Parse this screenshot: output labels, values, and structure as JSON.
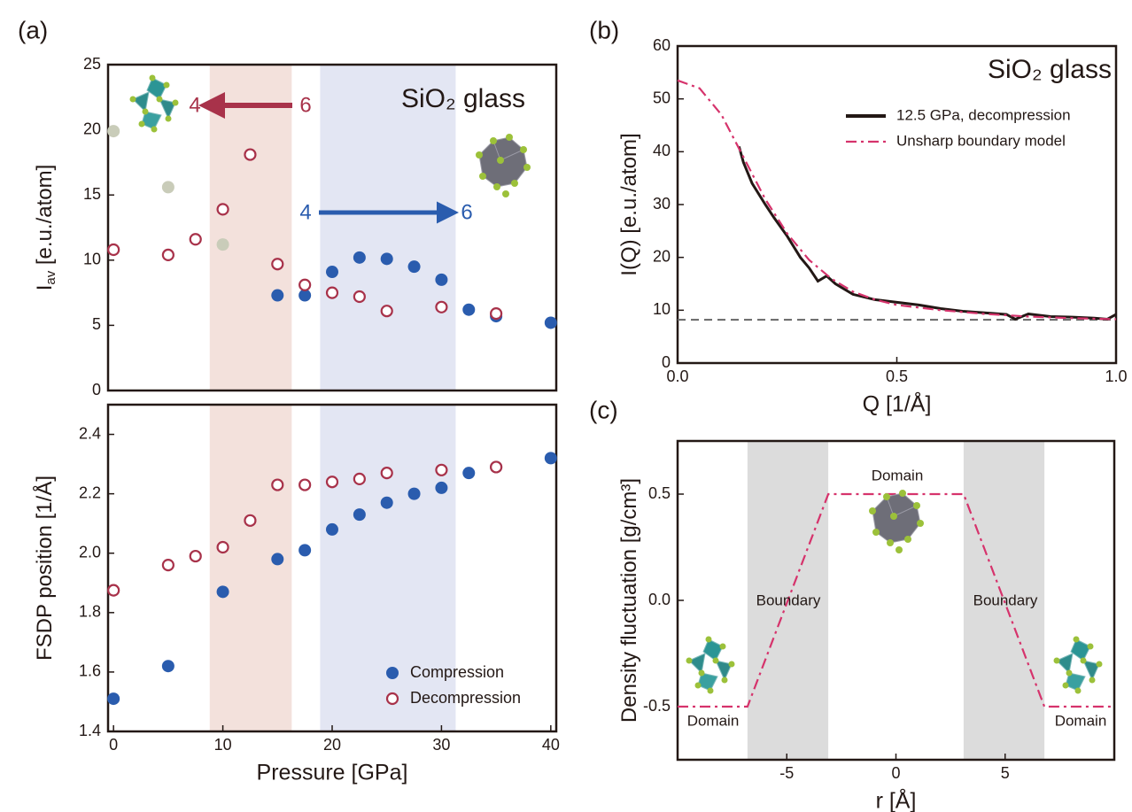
{
  "chart_data": [
    {
      "type": "scatter",
      "panel_label": "(a)",
      "title": "SiO₂ glass",
      "ylabel": "I",
      "ylabel_sub": "av",
      "ylabel_rest": " [e.u./atom]",
      "annotations": [
        "4",
        "6",
        "4",
        "6"
      ],
      "xlim": [
        -0.5,
        40.5
      ],
      "ylim": [
        0,
        25
      ],
      "yticks": [
        0,
        5,
        10,
        15,
        20,
        25
      ],
      "bands": [
        {
          "from": 8.8,
          "to": 16.3,
          "color": "#f3e1dc"
        },
        {
          "from": 18.9,
          "to": 31.3,
          "color": "#e3e6f3"
        }
      ],
      "series": [
        {
          "color": "#2a5cae",
          "marker": "filled",
          "x": [
            15,
            17.5,
            20,
            22.5,
            25,
            27.5,
            30,
            32.5,
            35,
            40
          ],
          "values": [
            7.3,
            7.3,
            9.1,
            10.2,
            10.1,
            9.5,
            8.5,
            6.2,
            5.7,
            5.2
          ]
        },
        {
          "color": "#c9ccb9",
          "marker": "filled",
          "x": [
            0,
            5,
            10
          ],
          "values": [
            19.9,
            15.6,
            11.2
          ]
        },
        {
          "color": "#a8324a",
          "marker": "open",
          "x": [
            0,
            5,
            7.5,
            10,
            12.5,
            15,
            17.5,
            20,
            22.5,
            25,
            30,
            35
          ],
          "values": [
            10.8,
            10.4,
            11.6,
            13.9,
            18.1,
            9.7,
            8.1,
            7.5,
            7.2,
            6.1,
            6.4,
            5.9
          ]
        }
      ]
    },
    {
      "type": "scatter",
      "xlabel": "Pressure [GPa]",
      "ylabel": "FSDP position [1/Å]",
      "xlim": [
        -0.5,
        40.5
      ],
      "xticks": [
        0,
        10,
        20,
        30,
        40
      ],
      "ylim": [
        1.4,
        2.5
      ],
      "yticks": [
        1.4,
        1.6,
        1.8,
        {
          "value": 2.0,
          "label": "2.0"
        },
        2.2,
        2.4
      ],
      "bands": [
        {
          "from": 8.8,
          "to": 16.3,
          "color": "#f3e1dc"
        },
        {
          "from": 18.9,
          "to": 31.3,
          "color": "#e3e6f3"
        }
      ],
      "legend": "lower right",
      "series": [
        {
          "name": "Compression",
          "color": "#2a5cae",
          "marker": "filled",
          "x": [
            0,
            5,
            10,
            15,
            17.5,
            20,
            22.5,
            25,
            27.5,
            30,
            32.5,
            35,
            40
          ],
          "values": [
            1.51,
            1.62,
            1.87,
            1.98,
            2.01,
            2.08,
            2.13,
            2.17,
            2.2,
            2.22,
            2.27,
            2.29,
            2.32
          ]
        },
        {
          "name": "Decompression",
          "color": "#a8324a",
          "marker": "open",
          "x": [
            0,
            5,
            7.5,
            10,
            12.5,
            15,
            17.5,
            20,
            22.5,
            25,
            30,
            35
          ],
          "values": [
            1.875,
            1.96,
            1.99,
            2.02,
            2.11,
            2.23,
            2.23,
            2.24,
            2.25,
            2.27,
            2.28,
            2.29
          ]
        }
      ]
    },
    {
      "type": "line",
      "panel_label": "(b)",
      "title": "SiO₂ glass",
      "xlabel": "Q [1/Å]",
      "ylabel": "I(Q) [e.u./atom]",
      "xlim": [
        0,
        1
      ],
      "xticks": [
        {
          "value": 0,
          "label": "0.0"
        },
        0.5,
        {
          "value": 1,
          "label": "1.0"
        }
      ],
      "ylim": [
        0,
        60
      ],
      "yticks": [
        0,
        10,
        20,
        30,
        40,
        50,
        60
      ],
      "legend": "upper right",
      "hlines": [
        {
          "value": 8.2,
          "color": "#666666",
          "dash": "dashed"
        }
      ],
      "series": [
        {
          "name": "12.5 GPa, decompression",
          "color": "#231815",
          "dash": "solid",
          "x": [
            0.14,
            0.15,
            0.17,
            0.2,
            0.22,
            0.25,
            0.28,
            0.3,
            0.32,
            0.34,
            0.36,
            0.38,
            0.4,
            0.45,
            0.5,
            0.55,
            0.6,
            0.65,
            0.7,
            0.75,
            0.77,
            0.8,
            0.85,
            0.9,
            0.95,
            0.98,
            1.0
          ],
          "values": [
            41,
            38,
            34,
            30,
            27.5,
            24,
            20,
            18,
            15.5,
            16.5,
            15,
            14,
            13,
            12,
            11.5,
            11,
            10.3,
            9.8,
            9.5,
            9.2,
            8.3,
            9.3,
            8.8,
            8.7,
            8.5,
            8.3,
            9.2
          ]
        },
        {
          "name": "Unsharp boundary model",
          "color": "#d6336c",
          "dash": "dashdot",
          "x": [
            0,
            0.05,
            0.1,
            0.15,
            0.2,
            0.25,
            0.3,
            0.35,
            0.4,
            0.45,
            0.5,
            0.6,
            0.7,
            0.8,
            0.9,
            1.0
          ],
          "values": [
            53.5,
            52,
            47,
            39,
            31,
            24.5,
            19.5,
            16,
            13.5,
            12,
            11,
            10,
            9.3,
            8.8,
            8.5,
            8.3
          ]
        }
      ]
    },
    {
      "type": "line",
      "panel_label": "(c)",
      "xlabel": "r [Å]",
      "ylabel": "Density fluctuation [g/cm³]",
      "annotations": [
        "Domain",
        "Boundary",
        "Boundary",
        "Domain",
        "Domain"
      ],
      "xlim": [
        -10,
        10
      ],
      "xticks": [
        -5,
        0,
        5
      ],
      "ylim": [
        -0.75,
        0.75
      ],
      "yticks": [
        -0.5,
        {
          "value": 0,
          "label": "0.0"
        },
        0.5
      ],
      "bands": [
        {
          "from": -6.8,
          "to": -3.1,
          "color": "#dcdcdc"
        },
        {
          "from": 3.1,
          "to": 6.8,
          "color": "#dcdcdc"
        }
      ],
      "series": [
        {
          "color": "#d6336c",
          "dash": "dashdot",
          "x": [
            -10,
            -6.8,
            -3.1,
            3.1,
            6.8,
            10
          ],
          "values": [
            -0.5,
            -0.5,
            0.5,
            0.5,
            -0.5,
            -0.5
          ]
        }
      ]
    }
  ]
}
